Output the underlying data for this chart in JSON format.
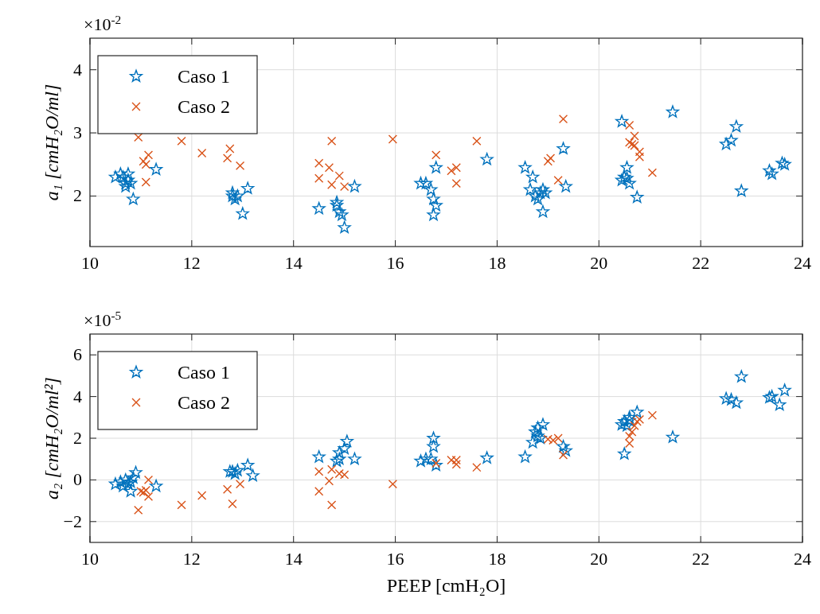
{
  "chart_data": [
    {
      "type": "scatter",
      "ylabel": "a₁ [cmH₂O/ml]",
      "annotations": [
        "×10$^{-2}$"
      ],
      "xlim": [
        10,
        24
      ],
      "xticks": [
        10,
        12,
        14,
        16,
        18,
        20,
        22,
        24
      ],
      "ylim": [
        1.2,
        4.5
      ],
      "yticks": [
        2,
        3,
        4
      ],
      "grid": true,
      "legend": "top left",
      "series": [
        {
          "name": "Caso 1",
          "color": "#0072bd",
          "marker": "star",
          "x": [
            10.5,
            10.6,
            10.65,
            10.7,
            10.75,
            10.7,
            10.8,
            10.75,
            10.85,
            11.3,
            12.8,
            12.85,
            12.9,
            12.8,
            13.1,
            13.0,
            14.5,
            14.85,
            14.9,
            14.95,
            14.85,
            15.0,
            15.2,
            16.5,
            16.6,
            16.7,
            16.75,
            16.8,
            16.75,
            16.8,
            17.8,
            18.55,
            18.7,
            18.65,
            18.75,
            18.8,
            18.85,
            18.9,
            18.9,
            18.95,
            19.3,
            19.35,
            20.45,
            20.45,
            20.5,
            20.55,
            20.6,
            20.55,
            20.75,
            21.45,
            22.5,
            22.6,
            22.7,
            22.8,
            23.35,
            23.4,
            23.6,
            23.65
          ],
          "values": [
            2.3,
            2.35,
            2.3,
            2.2,
            2.35,
            2.15,
            2.2,
            2.25,
            1.95,
            2.42,
            2.0,
            1.95,
            2.0,
            2.05,
            2.12,
            1.72,
            1.8,
            1.85,
            1.75,
            1.7,
            1.9,
            1.5,
            2.15,
            2.2,
            2.2,
            2.1,
            1.7,
            1.85,
            1.95,
            2.45,
            2.58,
            2.45,
            2.3,
            2.1,
            2.0,
            1.95,
            2.05,
            2.1,
            1.75,
            2.05,
            2.75,
            2.15,
            3.18,
            2.25,
            2.3,
            2.45,
            2.2,
            2.28,
            1.98,
            3.33,
            2.82,
            2.88,
            3.1,
            2.08,
            2.4,
            2.35,
            2.52,
            2.5
          ]
        },
        {
          "name": "Caso 2",
          "color": "#d95319",
          "marker": "cross",
          "x": [
            10.95,
            11.05,
            11.1,
            11.15,
            11.1,
            11.8,
            12.2,
            12.7,
            12.75,
            12.95,
            14.5,
            14.5,
            14.75,
            14.7,
            14.9,
            14.75,
            15.0,
            15.95,
            16.8,
            17.1,
            17.2,
            17.2,
            17.6,
            19.0,
            19.05,
            19.3,
            19.2,
            20.6,
            20.65,
            20.6,
            20.7,
            20.7,
            20.8,
            20.8,
            21.05
          ],
          "values": [
            2.93,
            2.55,
            2.5,
            2.65,
            2.22,
            2.87,
            2.68,
            2.6,
            2.75,
            2.48,
            2.52,
            2.28,
            2.87,
            2.45,
            2.32,
            2.18,
            2.15,
            2.9,
            2.65,
            2.4,
            2.45,
            2.2,
            2.87,
            2.55,
            2.6,
            3.22,
            2.25,
            3.12,
            2.82,
            2.85,
            2.95,
            2.8,
            2.7,
            2.62,
            2.37
          ]
        }
      ]
    },
    {
      "type": "scatter",
      "xlabel": "PEEP [cmH₂O]",
      "ylabel": "a₂ [cmH₂O/ml²]",
      "annotations": [
        "×10$^{-5}$"
      ],
      "xlim": [
        10,
        24
      ],
      "xticks": [
        10,
        12,
        14,
        16,
        18,
        20,
        22,
        24
      ],
      "ylim": [
        -3,
        7
      ],
      "yticks": [
        -2,
        0,
        2,
        4,
        6
      ],
      "grid": true,
      "legend": "top left",
      "series": [
        {
          "name": "Caso 1",
          "color": "#0072bd",
          "marker": "star",
          "x": [
            10.5,
            10.6,
            10.65,
            10.7,
            10.75,
            10.8,
            10.8,
            10.9,
            10.85,
            11.3,
            12.75,
            12.8,
            12.85,
            12.9,
            13.1,
            13.2,
            14.5,
            14.85,
            14.9,
            14.9,
            15.0,
            15.05,
            15.2,
            16.5,
            16.6,
            16.7,
            16.75,
            16.75,
            16.8,
            17.8,
            18.55,
            18.7,
            18.75,
            18.8,
            18.85,
            18.9,
            18.8,
            19.3,
            19.35,
            20.45,
            20.5,
            20.5,
            20.55,
            20.6,
            20.6,
            20.75,
            21.45,
            22.5,
            22.6,
            22.7,
            22.8,
            23.35,
            23.4,
            23.55,
            23.65
          ],
          "values": [
            -0.2,
            -0.1,
            -0.3,
            0,
            -0.2,
            -0.1,
            -0.55,
            0.35,
            0.1,
            -0.3,
            0.4,
            0.4,
            0.3,
            0.45,
            0.7,
            0.2,
            1.1,
            0.9,
            1.0,
            1.3,
            1.5,
            1.85,
            1.0,
            0.9,
            1.0,
            1.0,
            1.6,
            2.0,
            0.7,
            1.05,
            1.1,
            1.8,
            2.3,
            2.5,
            2.0,
            2.65,
            2.1,
            1.6,
            1.4,
            2.65,
            1.25,
            2.8,
            2.6,
            3.0,
            2.85,
            3.25,
            2.05,
            3.9,
            3.85,
            3.7,
            4.95,
            3.95,
            4.0,
            3.6,
            4.3
          ]
        },
        {
          "name": "Caso 2",
          "color": "#d95319",
          "marker": "cross",
          "x": [
            10.95,
            11.0,
            11.05,
            11.1,
            11.15,
            11.15,
            11.8,
            12.2,
            12.7,
            12.8,
            12.95,
            14.5,
            14.5,
            14.75,
            14.75,
            14.7,
            14.9,
            15.0,
            15.95,
            16.8,
            17.1,
            17.2,
            17.2,
            17.6,
            19.0,
            19.1,
            19.2,
            19.3,
            20.6,
            20.6,
            20.65,
            20.7,
            20.75,
            20.8,
            21.05
          ],
          "values": [
            -1.45,
            -0.55,
            -0.6,
            -0.5,
            0,
            -0.8,
            -1.2,
            -0.75,
            -0.45,
            -1.15,
            -0.2,
            0.4,
            -0.55,
            -1.2,
            0.5,
            -0.05,
            0.3,
            0.25,
            -0.2,
            0.8,
            0.95,
            0.75,
            0.95,
            0.6,
            1.95,
            1.9,
            2.0,
            1.2,
            1.75,
            2.1,
            2.3,
            2.6,
            2.8,
            2.9,
            3.1
          ]
        }
      ]
    }
  ]
}
